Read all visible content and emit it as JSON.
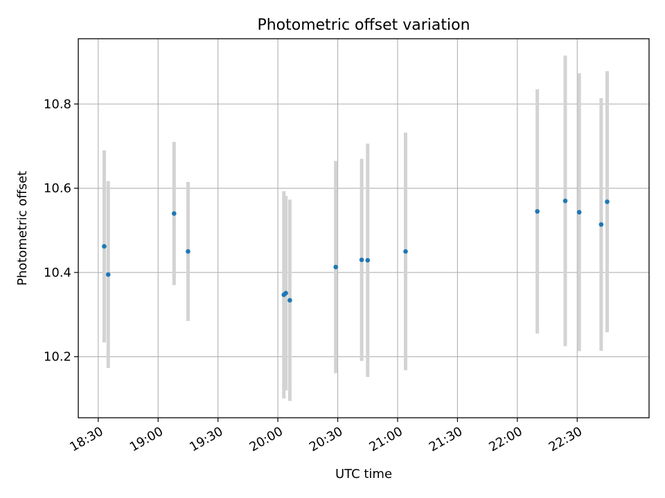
{
  "chart_data": {
    "type": "scatter",
    "title": "Photometric offset variation",
    "xlabel": "UTC time",
    "ylabel": "Photometric offset",
    "x_ticks": [
      "18:30",
      "19:00",
      "19:30",
      "20:00",
      "20:30",
      "21:00",
      "21:30",
      "22:00",
      "22:30"
    ],
    "y_ticks": [
      "10.2",
      "10.4",
      "10.6",
      "10.8"
    ],
    "xlim": [
      "18:20",
      "23:06"
    ],
    "ylim": [
      10.055,
      10.955
    ],
    "grid": true,
    "colors": {
      "points": "#1f77b4",
      "errorbars": "#d3d3d3",
      "grid": "#b0b0b0"
    },
    "points": [
      {
        "x": "18:33",
        "y": 10.462,
        "err": 0.228
      },
      {
        "x": "18:35",
        "y": 10.395,
        "err": 0.222
      },
      {
        "x": "19:08",
        "y": 10.54,
        "err": 0.17
      },
      {
        "x": "19:15",
        "y": 10.45,
        "err": 0.165
      },
      {
        "x": "20:03",
        "y": 10.347,
        "err": 0.246
      },
      {
        "x": "20:04",
        "y": 10.351,
        "err": 0.231
      },
      {
        "x": "20:06",
        "y": 10.334,
        "err": 0.239
      },
      {
        "x": "20:29",
        "y": 10.413,
        "err": 0.252
      },
      {
        "x": "20:42",
        "y": 10.43,
        "err": 0.24
      },
      {
        "x": "20:45",
        "y": 10.429,
        "err": 0.277
      },
      {
        "x": "21:04",
        "y": 10.45,
        "err": 0.282
      },
      {
        "x": "22:10",
        "y": 10.545,
        "err": 0.29
      },
      {
        "x": "22:24",
        "y": 10.57,
        "err": 0.345
      },
      {
        "x": "22:31",
        "y": 10.543,
        "err": 0.33
      },
      {
        "x": "22:42",
        "y": 10.514,
        "err": 0.3
      },
      {
        "x": "22:45",
        "y": 10.568,
        "err": 0.31
      }
    ]
  }
}
